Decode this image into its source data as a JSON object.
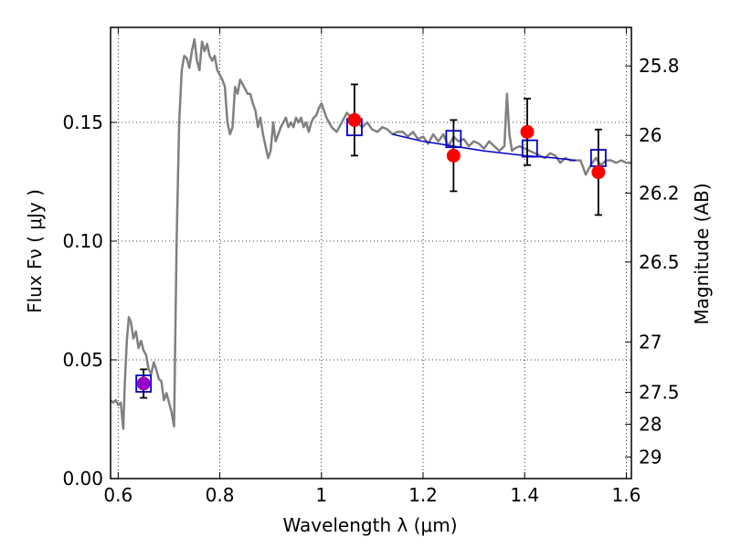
{
  "chart_data": {
    "type": "line",
    "xlabel": "Wavelength  λ (μm)",
    "ylabel": "Flux  Fν  ( μJy )",
    "y2label": "Magnitude (AB)",
    "xlim": [
      0.585,
      1.61
    ],
    "ylim": [
      0.0,
      0.19
    ],
    "grid": true,
    "grid_style": "dotted",
    "x_ticks": [
      0.6,
      0.8,
      1.0,
      1.2,
      1.4,
      1.6
    ],
    "x_tick_labels": [
      "0.6",
      "0.8",
      "1",
      "1.2",
      "1.4",
      "1.6"
    ],
    "y_ticks": [
      0.0,
      0.05,
      0.1,
      0.15
    ],
    "y_tick_labels": [
      "0.00",
      "0.05",
      "0.10",
      "0.15"
    ],
    "y2_ticks": [
      {
        "mag": 25.8,
        "label": "25.8"
      },
      {
        "mag": 26.0,
        "label": "26"
      },
      {
        "mag": 26.2,
        "label": "26.2"
      },
      {
        "mag": 26.5,
        "label": "26.5"
      },
      {
        "mag": 27.0,
        "label": "27"
      },
      {
        "mag": 27.5,
        "label": "27.5"
      },
      {
        "mag": 28.0,
        "label": "28"
      },
      {
        "mag": 29.0,
        "label": "29"
      }
    ],
    "series": [
      {
        "style": "line",
        "color": "#808080",
        "x": [
          0.585,
          0.59,
          0.595,
          0.6,
          0.605,
          0.61,
          0.613,
          0.617,
          0.621,
          0.625,
          0.63,
          0.635,
          0.64,
          0.645,
          0.65,
          0.655,
          0.66,
          0.665,
          0.67,
          0.675,
          0.68,
          0.685,
          0.69,
          0.695,
          0.7,
          0.705,
          0.71,
          0.715,
          0.72,
          0.725,
          0.73,
          0.735,
          0.74,
          0.745,
          0.75,
          0.755,
          0.76,
          0.765,
          0.77,
          0.775,
          0.78,
          0.785,
          0.79,
          0.795,
          0.8,
          0.805,
          0.81,
          0.815,
          0.82,
          0.825,
          0.83,
          0.835,
          0.84,
          0.845,
          0.85,
          0.855,
          0.86,
          0.865,
          0.87,
          0.875,
          0.88,
          0.885,
          0.89,
          0.895,
          0.9,
          0.905,
          0.91,
          0.915,
          0.92,
          0.925,
          0.93,
          0.935,
          0.94,
          0.945,
          0.95,
          0.955,
          0.96,
          0.965,
          0.97,
          0.975,
          0.98,
          0.985,
          0.99,
          0.995,
          1.0,
          1.01,
          1.02,
          1.03,
          1.04,
          1.05,
          1.06,
          1.07,
          1.08,
          1.09,
          1.1,
          1.11,
          1.12,
          1.13,
          1.14,
          1.15,
          1.16,
          1.17,
          1.18,
          1.19,
          1.2,
          1.21,
          1.22,
          1.23,
          1.24,
          1.25,
          1.26,
          1.27,
          1.28,
          1.29,
          1.3,
          1.31,
          1.32,
          1.33,
          1.34,
          1.35,
          1.36,
          1.365,
          1.37,
          1.375,
          1.38,
          1.39,
          1.4,
          1.41,
          1.42,
          1.43,
          1.44,
          1.45,
          1.46,
          1.47,
          1.48,
          1.49,
          1.5,
          1.51,
          1.52,
          1.53,
          1.54,
          1.55,
          1.56,
          1.57,
          1.58,
          1.59,
          1.6,
          1.61
        ],
        "y": [
          0.033,
          0.032,
          0.033,
          0.031,
          0.032,
          0.021,
          0.04,
          0.058,
          0.068,
          0.066,
          0.059,
          0.062,
          0.055,
          0.058,
          0.054,
          0.052,
          0.046,
          0.044,
          0.049,
          0.046,
          0.042,
          0.041,
          0.033,
          0.036,
          0.032,
          0.028,
          0.022,
          0.1,
          0.15,
          0.172,
          0.178,
          0.177,
          0.173,
          0.18,
          0.185,
          0.176,
          0.172,
          0.184,
          0.18,
          0.183,
          0.178,
          0.176,
          0.178,
          0.172,
          0.17,
          0.168,
          0.165,
          0.15,
          0.145,
          0.148,
          0.165,
          0.162,
          0.168,
          0.166,
          0.164,
          0.162,
          0.162,
          0.158,
          0.155,
          0.148,
          0.152,
          0.145,
          0.14,
          0.135,
          0.138,
          0.15,
          0.142,
          0.145,
          0.148,
          0.15,
          0.152,
          0.148,
          0.15,
          0.148,
          0.152,
          0.15,
          0.152,
          0.148,
          0.15,
          0.146,
          0.15,
          0.152,
          0.153,
          0.156,
          0.158,
          0.152,
          0.148,
          0.146,
          0.15,
          0.154,
          0.152,
          0.15,
          0.148,
          0.15,
          0.147,
          0.146,
          0.148,
          0.147,
          0.145,
          0.146,
          0.146,
          0.144,
          0.146,
          0.143,
          0.144,
          0.141,
          0.145,
          0.142,
          0.145,
          0.14,
          0.144,
          0.142,
          0.143,
          0.14,
          0.142,
          0.141,
          0.139,
          0.142,
          0.14,
          0.138,
          0.14,
          0.162,
          0.145,
          0.138,
          0.139,
          0.14,
          0.139,
          0.138,
          0.137,
          0.136,
          0.135,
          0.137,
          0.136,
          0.133,
          0.135,
          0.134,
          0.134,
          0.134,
          0.128,
          0.132,
          0.135,
          0.132,
          0.134,
          0.134,
          0.133,
          0.134,
          0.133,
          0.133
        ]
      },
      {
        "style": "line",
        "color": "#0000cc",
        "x": [
          1.14,
          1.2,
          1.26,
          1.32,
          1.4,
          1.46,
          1.5
        ],
        "y": [
          0.145,
          0.142,
          0.14,
          0.138,
          0.136,
          0.135,
          0.134
        ]
      },
      {
        "style": "open-square",
        "color": "#0000cc",
        "x": [
          0.65,
          1.065,
          1.26,
          1.41,
          1.545
        ],
        "y": [
          0.04,
          0.148,
          0.143,
          0.139,
          0.135
        ]
      },
      {
        "style": "filled-circle-errorbar",
        "color": "#ff0000",
        "x": [
          1.065,
          1.26,
          1.405,
          1.545
        ],
        "y": [
          0.151,
          0.136,
          0.146,
          0.129
        ],
        "yerr": [
          0.015,
          0.015,
          0.014,
          0.018
        ]
      },
      {
        "style": "filled-circle-errorbar",
        "color": "#9900cc",
        "x": [
          0.65
        ],
        "y": [
          0.04
        ],
        "yerr": [
          0.006
        ]
      }
    ]
  }
}
